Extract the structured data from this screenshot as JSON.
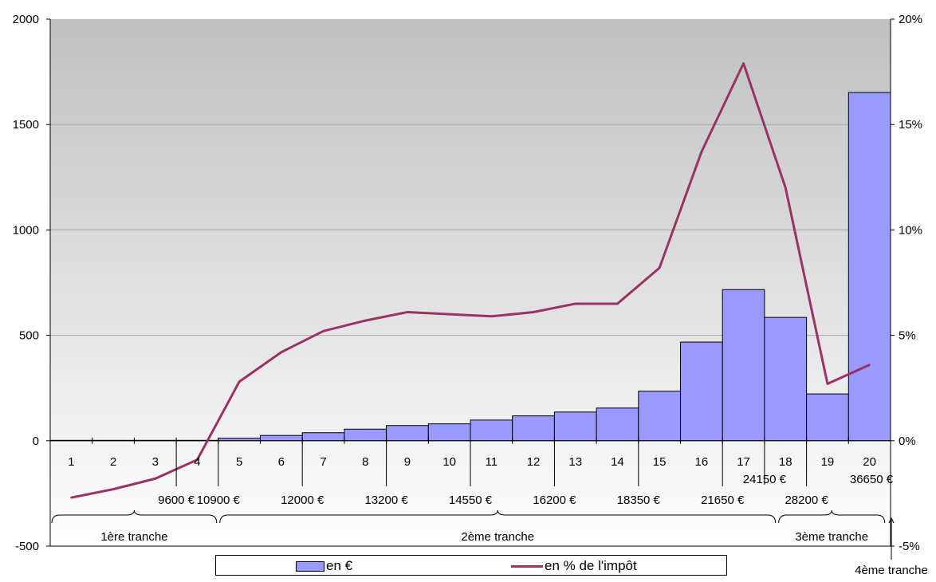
{
  "chart_data": {
    "type": "bar",
    "categories": [
      "1",
      "2",
      "3",
      "4",
      "5",
      "6",
      "7",
      "8",
      "9",
      "10",
      "11",
      "12",
      "13",
      "14",
      "15",
      "16",
      "17",
      "18",
      "19",
      "20"
    ],
    "series": [
      {
        "name": "en €",
        "type": "bar",
        "axis": "left",
        "values": [
          0,
          0,
          0,
          0,
          12,
          25,
          38,
          55,
          72,
          80,
          98,
          118,
          136,
          155,
          235,
          468,
          717,
          585,
          222,
          1652
        ]
      },
      {
        "name": "en % de l'impôt",
        "type": "line",
        "axis": "right",
        "values": [
          -2.7,
          -2.3,
          -1.8,
          -0.9,
          2.8,
          4.2,
          5.2,
          5.7,
          6.1,
          6.0,
          5.9,
          6.1,
          6.5,
          6.5,
          8.2,
          13.7,
          17.9,
          12.0,
          2.7,
          3.6
        ]
      }
    ],
    "y_left": {
      "ylim": [
        -500,
        2000
      ],
      "ticks": [
        "-500",
        "0",
        "500",
        "1000",
        "1500",
        "2000"
      ]
    },
    "y_right": {
      "ylim": [
        -5,
        20
      ],
      "ticks": [
        "-5%",
        "0%",
        "5%",
        "10%",
        "15%",
        "20%"
      ]
    },
    "gridlines": true,
    "legend_position": "bottom",
    "threshold_labels": [
      {
        "label": "9600 €",
        "after_category": 3,
        "row": 2
      },
      {
        "label": "10900 €",
        "after_category": 4,
        "row": 2
      },
      {
        "label": "12000 €",
        "after_category": 6,
        "row": 2
      },
      {
        "label": "13200 €",
        "after_category": 8,
        "row": 2
      },
      {
        "label": "14550 €",
        "after_category": 10,
        "row": 2
      },
      {
        "label": "16200 €",
        "after_category": 12,
        "row": 2
      },
      {
        "label": "18350 €",
        "after_category": 14,
        "row": 2
      },
      {
        "label": "21650 €",
        "after_category": 16,
        "row": 2
      },
      {
        "label": "24150 €",
        "after_category": 17,
        "row": 1
      },
      {
        "label": "28200 €",
        "after_category": 18,
        "row": 2
      },
      {
        "label": "36650 €",
        "after_category": 20,
        "row": 1
      }
    ],
    "tranches": [
      {
        "label": "1ère tranche",
        "from": 0,
        "to": 4
      },
      {
        "label": "2ème tranche",
        "from": 4,
        "to": 17.3
      },
      {
        "label": "3ème tranche",
        "from": 17.3,
        "to": 19.9
      },
      {
        "label": "4ème tranche",
        "from": 20,
        "to": 20
      }
    ]
  },
  "colors": {
    "bar_fill": "#9999ff",
    "line": "#993366",
    "plot_bg_top": "#c0c0c0",
    "plot_bg_bottom": "#ffffff"
  }
}
